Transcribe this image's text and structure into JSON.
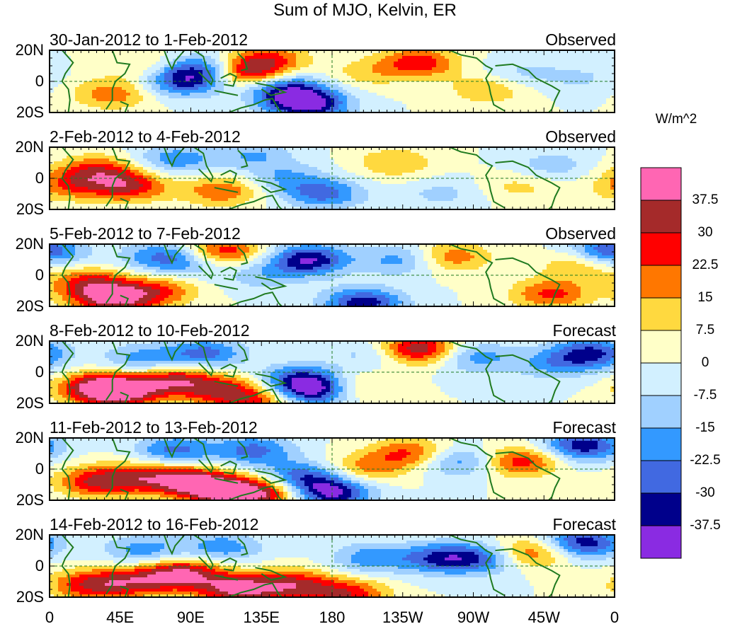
{
  "title": "Sum of MJO, Kelvin, ER",
  "units_label": "W/m^2",
  "panels": [
    {
      "period": "30-Jan-2012 to 1-Feb-2012",
      "kind": "Observed"
    },
    {
      "period": "2-Feb-2012 to 4-Feb-2012",
      "kind": "Observed"
    },
    {
      "period": "5-Feb-2012 to 7-Feb-2012",
      "kind": "Observed"
    },
    {
      "period": "8-Feb-2012 to 10-Feb-2012",
      "kind": "Forecast"
    },
    {
      "period": "11-Feb-2012 to 13-Feb-2012",
      "kind": "Forecast"
    },
    {
      "period": "14-Feb-2012 to 16-Feb-2012",
      "kind": "Forecast"
    }
  ],
  "lat_ticks": [
    "20N",
    "0",
    "20S"
  ],
  "lon_ticks": [
    "0",
    "45E",
    "90E",
    "135E",
    "180",
    "135W",
    "90W",
    "45W",
    "0"
  ],
  "colorbar": {
    "colors": [
      "#ff66b3",
      "#a52a2a",
      "#ff0000",
      "#ff7700",
      "#ffd93f",
      "#ffffc8",
      "#d2f0ff",
      "#a0d0ff",
      "#3399ff",
      "#4169e1",
      "#00008b",
      "#8a2be2"
    ],
    "labels": [
      "37.5",
      "30",
      "22.5",
      "15",
      "7.5",
      "0",
      "-7.5",
      "-15",
      "-22.5",
      "-30",
      "-37.5"
    ]
  },
  "colors": {
    "coast": "#1f7a1f",
    "reference": "#1f7a1f",
    "frame": "#000000"
  }
}
